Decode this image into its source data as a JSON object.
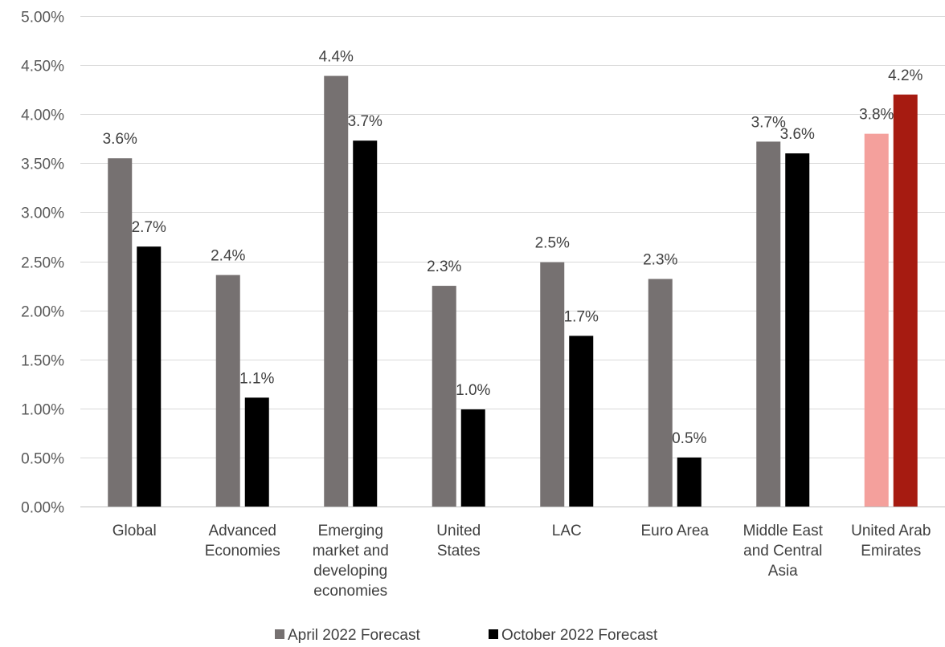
{
  "chart_data": {
    "type": "bar",
    "title": "",
    "xlabel": "",
    "ylabel": "",
    "ylim": [
      0,
      5
    ],
    "yticks": [
      0,
      0.5,
      1,
      1.5,
      2,
      2.5,
      3,
      3.5,
      4,
      4.5,
      5
    ],
    "ytick_labels": [
      "0.00%",
      "0.50%",
      "1.00%",
      "1.50%",
      "2.00%",
      "2.50%",
      "3.00%",
      "3.50%",
      "4.00%",
      "4.50%",
      "5.00%"
    ],
    "grid": true,
    "legend_position": "bottom",
    "categories": [
      [
        "Global"
      ],
      [
        "Advanced",
        "Economies"
      ],
      [
        "Emerging",
        "market and",
        "developing",
        "economies"
      ],
      [
        "United",
        "States"
      ],
      [
        "LAC"
      ],
      [
        "Euro Area"
      ],
      [
        "Middle East",
        "and Central",
        "Asia"
      ],
      [
        "United Arab",
        "Emirates"
      ]
    ],
    "series": [
      {
        "name": "April 2022 Forecast",
        "color": "#767171",
        "values": [
          3.55,
          2.36,
          4.39,
          2.25,
          2.49,
          2.32,
          3.72,
          3.8
        ],
        "labels": [
          "3.6%",
          "2.4%",
          "4.4%",
          "2.3%",
          "2.5%",
          "2.3%",
          "3.7%",
          "3.8%"
        ],
        "highlight_color": "#f4a09c"
      },
      {
        "name": "October 2022 Forecast",
        "color": "#000000",
        "values": [
          2.65,
          1.11,
          3.73,
          0.99,
          1.74,
          0.5,
          3.6,
          4.2
        ],
        "labels": [
          "2.7%",
          "1.1%",
          "3.7%",
          "1.0%",
          "1.7%",
          "0.5%",
          "3.6%",
          "4.2%"
        ],
        "highlight_color": "#a61b11"
      }
    ],
    "highlight_category_index": 7
  }
}
